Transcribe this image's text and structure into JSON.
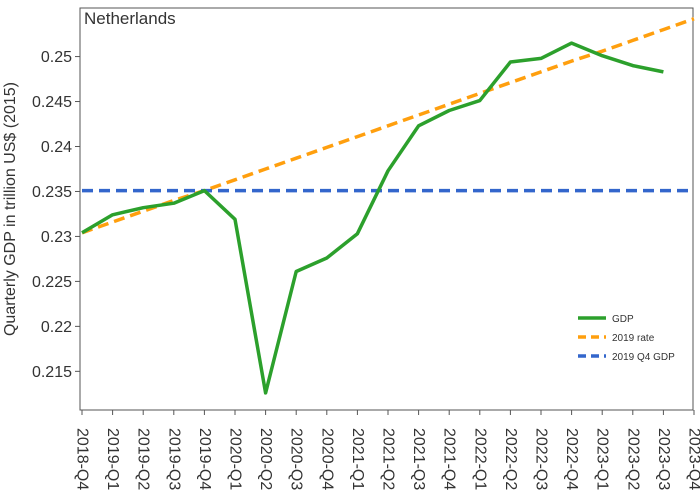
{
  "chart_data": {
    "type": "line",
    "title": "Netherlands",
    "xlabel": "",
    "ylabel": "Quarterly GDP in trillion US$ (2015)",
    "categories": [
      "2018-Q4",
      "2019-Q1",
      "2019-Q2",
      "2019-Q3",
      "2019-Q4",
      "2020-Q1",
      "2020-Q2",
      "2020-Q3",
      "2020-Q4",
      "2021-Q1",
      "2021-Q2",
      "2021-Q3",
      "2021-Q4",
      "2022-Q1",
      "2022-Q2",
      "2022-Q3",
      "2022-Q4",
      "2023-Q1",
      "2023-Q2",
      "2023-Q3",
      "2023-Q4"
    ],
    "y_ticks": [
      "0.215",
      "0.22",
      "0.225",
      "0.23",
      "0.235",
      "0.24",
      "0.245",
      "0.25"
    ],
    "ylim": [
      0.2107,
      0.2554
    ],
    "grid": false,
    "legend_position": "bottom-right",
    "series": [
      {
        "name": "GDP",
        "color": "#2ca02c",
        "dash": "solid",
        "values": [
          0.2304,
          0.2324,
          0.2332,
          0.2337,
          0.2351,
          0.2319,
          0.2126,
          0.2261,
          0.2276,
          0.2303,
          0.2373,
          0.2423,
          0.244,
          0.2451,
          0.2494,
          0.2498,
          0.2515,
          0.2501,
          0.249,
          0.2483,
          null
        ]
      },
      {
        "name": "2019 rate",
        "color": "#ff9f0e",
        "dash": "dashed",
        "values": [
          0.2304,
          0.2316,
          0.2328,
          0.234,
          0.2351,
          0.2363,
          0.2375,
          0.2387,
          0.2399,
          0.2411,
          0.2423,
          0.2435,
          0.2447,
          0.2459,
          0.2471,
          0.2483,
          0.2495,
          0.2506,
          0.2518,
          0.253,
          0.2542
        ]
      },
      {
        "name": "2019 Q4 GDP",
        "color": "#3366cc",
        "dash": "dashed",
        "values": [
          0.2351,
          0.2351,
          0.2351,
          0.2351,
          0.2351,
          0.2351,
          0.2351,
          0.2351,
          0.2351,
          0.2351,
          0.2351,
          0.2351,
          0.2351,
          0.2351,
          0.2351,
          0.2351,
          0.2351,
          0.2351,
          0.2351,
          0.2351,
          0.2351
        ]
      }
    ]
  }
}
